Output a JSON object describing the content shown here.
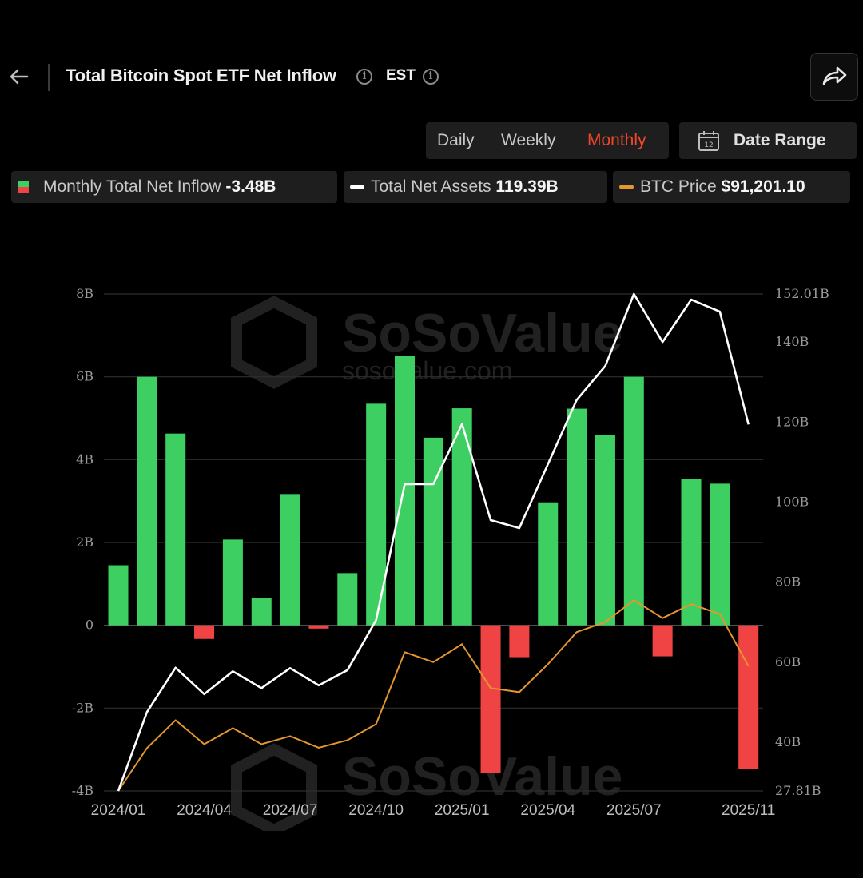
{
  "header": {
    "title": "Total Bitcoin Spot ETF Net Inflow",
    "timezone": "EST"
  },
  "period_tabs": [
    {
      "label": "Daily",
      "active": false
    },
    {
      "label": "Weekly",
      "active": false
    },
    {
      "label": "Monthly",
      "active": true
    }
  ],
  "date_range": {
    "label": "Date Range",
    "icon_day": "12"
  },
  "legend": [
    {
      "name": "Monthly Total Net Inflow",
      "value": "-3.48B",
      "icon": "green-red-square"
    },
    {
      "name": "Total Net Assets",
      "value": "119.39B",
      "icon": "white-line"
    },
    {
      "name": "BTC Price",
      "value": "$91,201.10",
      "icon": "orange-line"
    }
  ],
  "watermark": {
    "brand": "SoSoValue",
    "url": "sosovalue.com"
  },
  "colors": {
    "positive": "#3ecf63",
    "negative": "#f04444",
    "assets_line": "#ffffff",
    "price_line": "#e5962f",
    "accent": "#f0462a"
  },
  "chart_data": {
    "type": "bar",
    "categories": [
      "2024/01",
      "2024/02",
      "2024/03",
      "2024/04",
      "2024/05",
      "2024/06",
      "2024/07",
      "2024/08",
      "2024/09",
      "2024/10",
      "2024/11",
      "2024/12",
      "2025/01",
      "2025/02",
      "2025/03",
      "2025/04",
      "2025/05",
      "2025/06",
      "2025/07",
      "2025/08",
      "2025/09",
      "2025/10",
      "2025/11"
    ],
    "x_tick_labels": [
      "2024/01",
      "2024/04",
      "2024/07",
      "2024/10",
      "2025/01",
      "2025/04",
      "2025/07",
      "2025/11"
    ],
    "series": [
      {
        "name": "Monthly Total Net Inflow",
        "axis": "left",
        "type": "bar",
        "values": [
          1.45,
          6.0,
          4.63,
          -0.33,
          2.07,
          0.66,
          3.17,
          -0.08,
          1.26,
          5.35,
          6.5,
          4.53,
          5.24,
          -3.56,
          -0.77,
          2.97,
          5.23,
          4.6,
          6.0,
          -0.75,
          3.53,
          3.42,
          -3.48
        ]
      },
      {
        "name": "Total Net Assets",
        "axis": "right",
        "type": "line",
        "values": [
          27.81,
          47.5,
          58.6,
          52.0,
          57.7,
          53.5,
          58.5,
          54.2,
          58.0,
          70.5,
          104.5,
          104.5,
          119.5,
          95.5,
          93.5,
          109.5,
          125.5,
          134.0,
          152.01,
          140.0,
          150.6,
          147.6,
          119.39
        ]
      },
      {
        "name": "BTC Price",
        "axis": "right",
        "type": "line",
        "values": [
          27.81,
          38.5,
          45.5,
          39.5,
          43.5,
          39.5,
          41.5,
          38.6,
          40.5,
          44.5,
          62.5,
          60.0,
          64.5,
          53.5,
          52.5,
          59.5,
          67.5,
          70.0,
          75.5,
          71.0,
          74.5,
          72.0,
          59.0
        ]
      }
    ],
    "left_axis": {
      "ticks": [
        "8B",
        "6B",
        "4B",
        "2B",
        "0",
        "-2B",
        "-4B"
      ],
      "min": -4,
      "max": 8
    },
    "right_axis": {
      "ticks": [
        "152.01B",
        "140B",
        "120B",
        "100B",
        "80B",
        "60B",
        "40B",
        "27.81B"
      ],
      "tick_values": [
        152.01,
        140,
        120,
        100,
        80,
        60,
        40,
        27.81
      ],
      "min": 27.81,
      "max": 152.01
    },
    "grid": true
  }
}
